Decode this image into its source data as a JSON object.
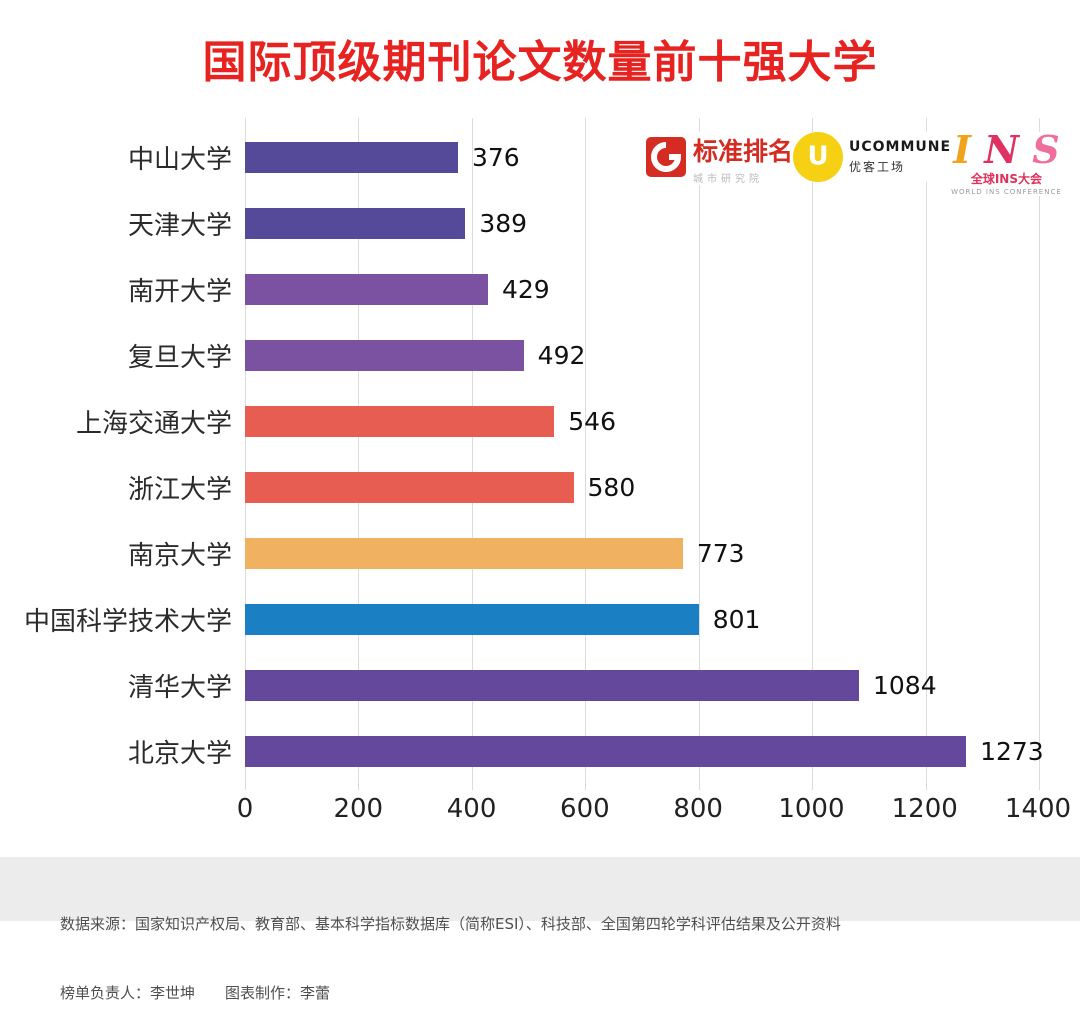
{
  "title": "国际顶级期刊论文数量前十强大学",
  "chart_data": {
    "type": "bar",
    "orientation": "horizontal",
    "title": "国际顶级期刊论文数量前十强大学",
    "categories": [
      "中山大学",
      "天津大学",
      "南开大学",
      "复旦大学",
      "上海交通大学",
      "浙江大学",
      "南京大学",
      "中国科学技术大学",
      "清华大学",
      "北京大学"
    ],
    "values": [
      376,
      389,
      429,
      492,
      546,
      580,
      773,
      801,
      1084,
      1273
    ],
    "bar_colors": [
      "#55499a",
      "#55499a",
      "#7b52a2",
      "#7b52a2",
      "#e75d51",
      "#e75d51",
      "#f0b160",
      "#1b7fc3",
      "#63489c",
      "#63489c"
    ],
    "xlim": [
      0,
      1400
    ],
    "x_ticks": [
      0,
      200,
      400,
      600,
      800,
      1000,
      1200,
      1400
    ],
    "xlabel": "",
    "ylabel": "",
    "grid": true,
    "legend": false,
    "value_labels": true
  },
  "colors": {
    "title": "#e62320",
    "grid_line": "#dcdcdc",
    "footer_bg": "#ececec",
    "footer_text": "#4f4f4f"
  },
  "logos": {
    "biaozhun": {
      "name": "标准排名",
      "subtitle": "城市研究院",
      "icon_color": "#d42b23"
    },
    "ucommune": {
      "name": "UCOMMUNE",
      "subtitle": "优客工场",
      "icon_letter": "U",
      "icon_color": "#f5d013"
    },
    "ins": {
      "letters": [
        "I",
        "N",
        "S"
      ],
      "letter_colors": [
        "#f0a41e",
        "#e03262",
        "#ee6f9c"
      ],
      "subtitle": "全球INS大会",
      "subtext": "WORLD INS CONFERENCE"
    }
  },
  "footer": {
    "line1": "数据来源：国家知识产权局、教育部、基本科学指标数据库（简称ESI）、科技部、全国第四轮学科评估结果及公开资料",
    "line2": "榜单负责人：李世坤　　图表制作：李蕾"
  }
}
